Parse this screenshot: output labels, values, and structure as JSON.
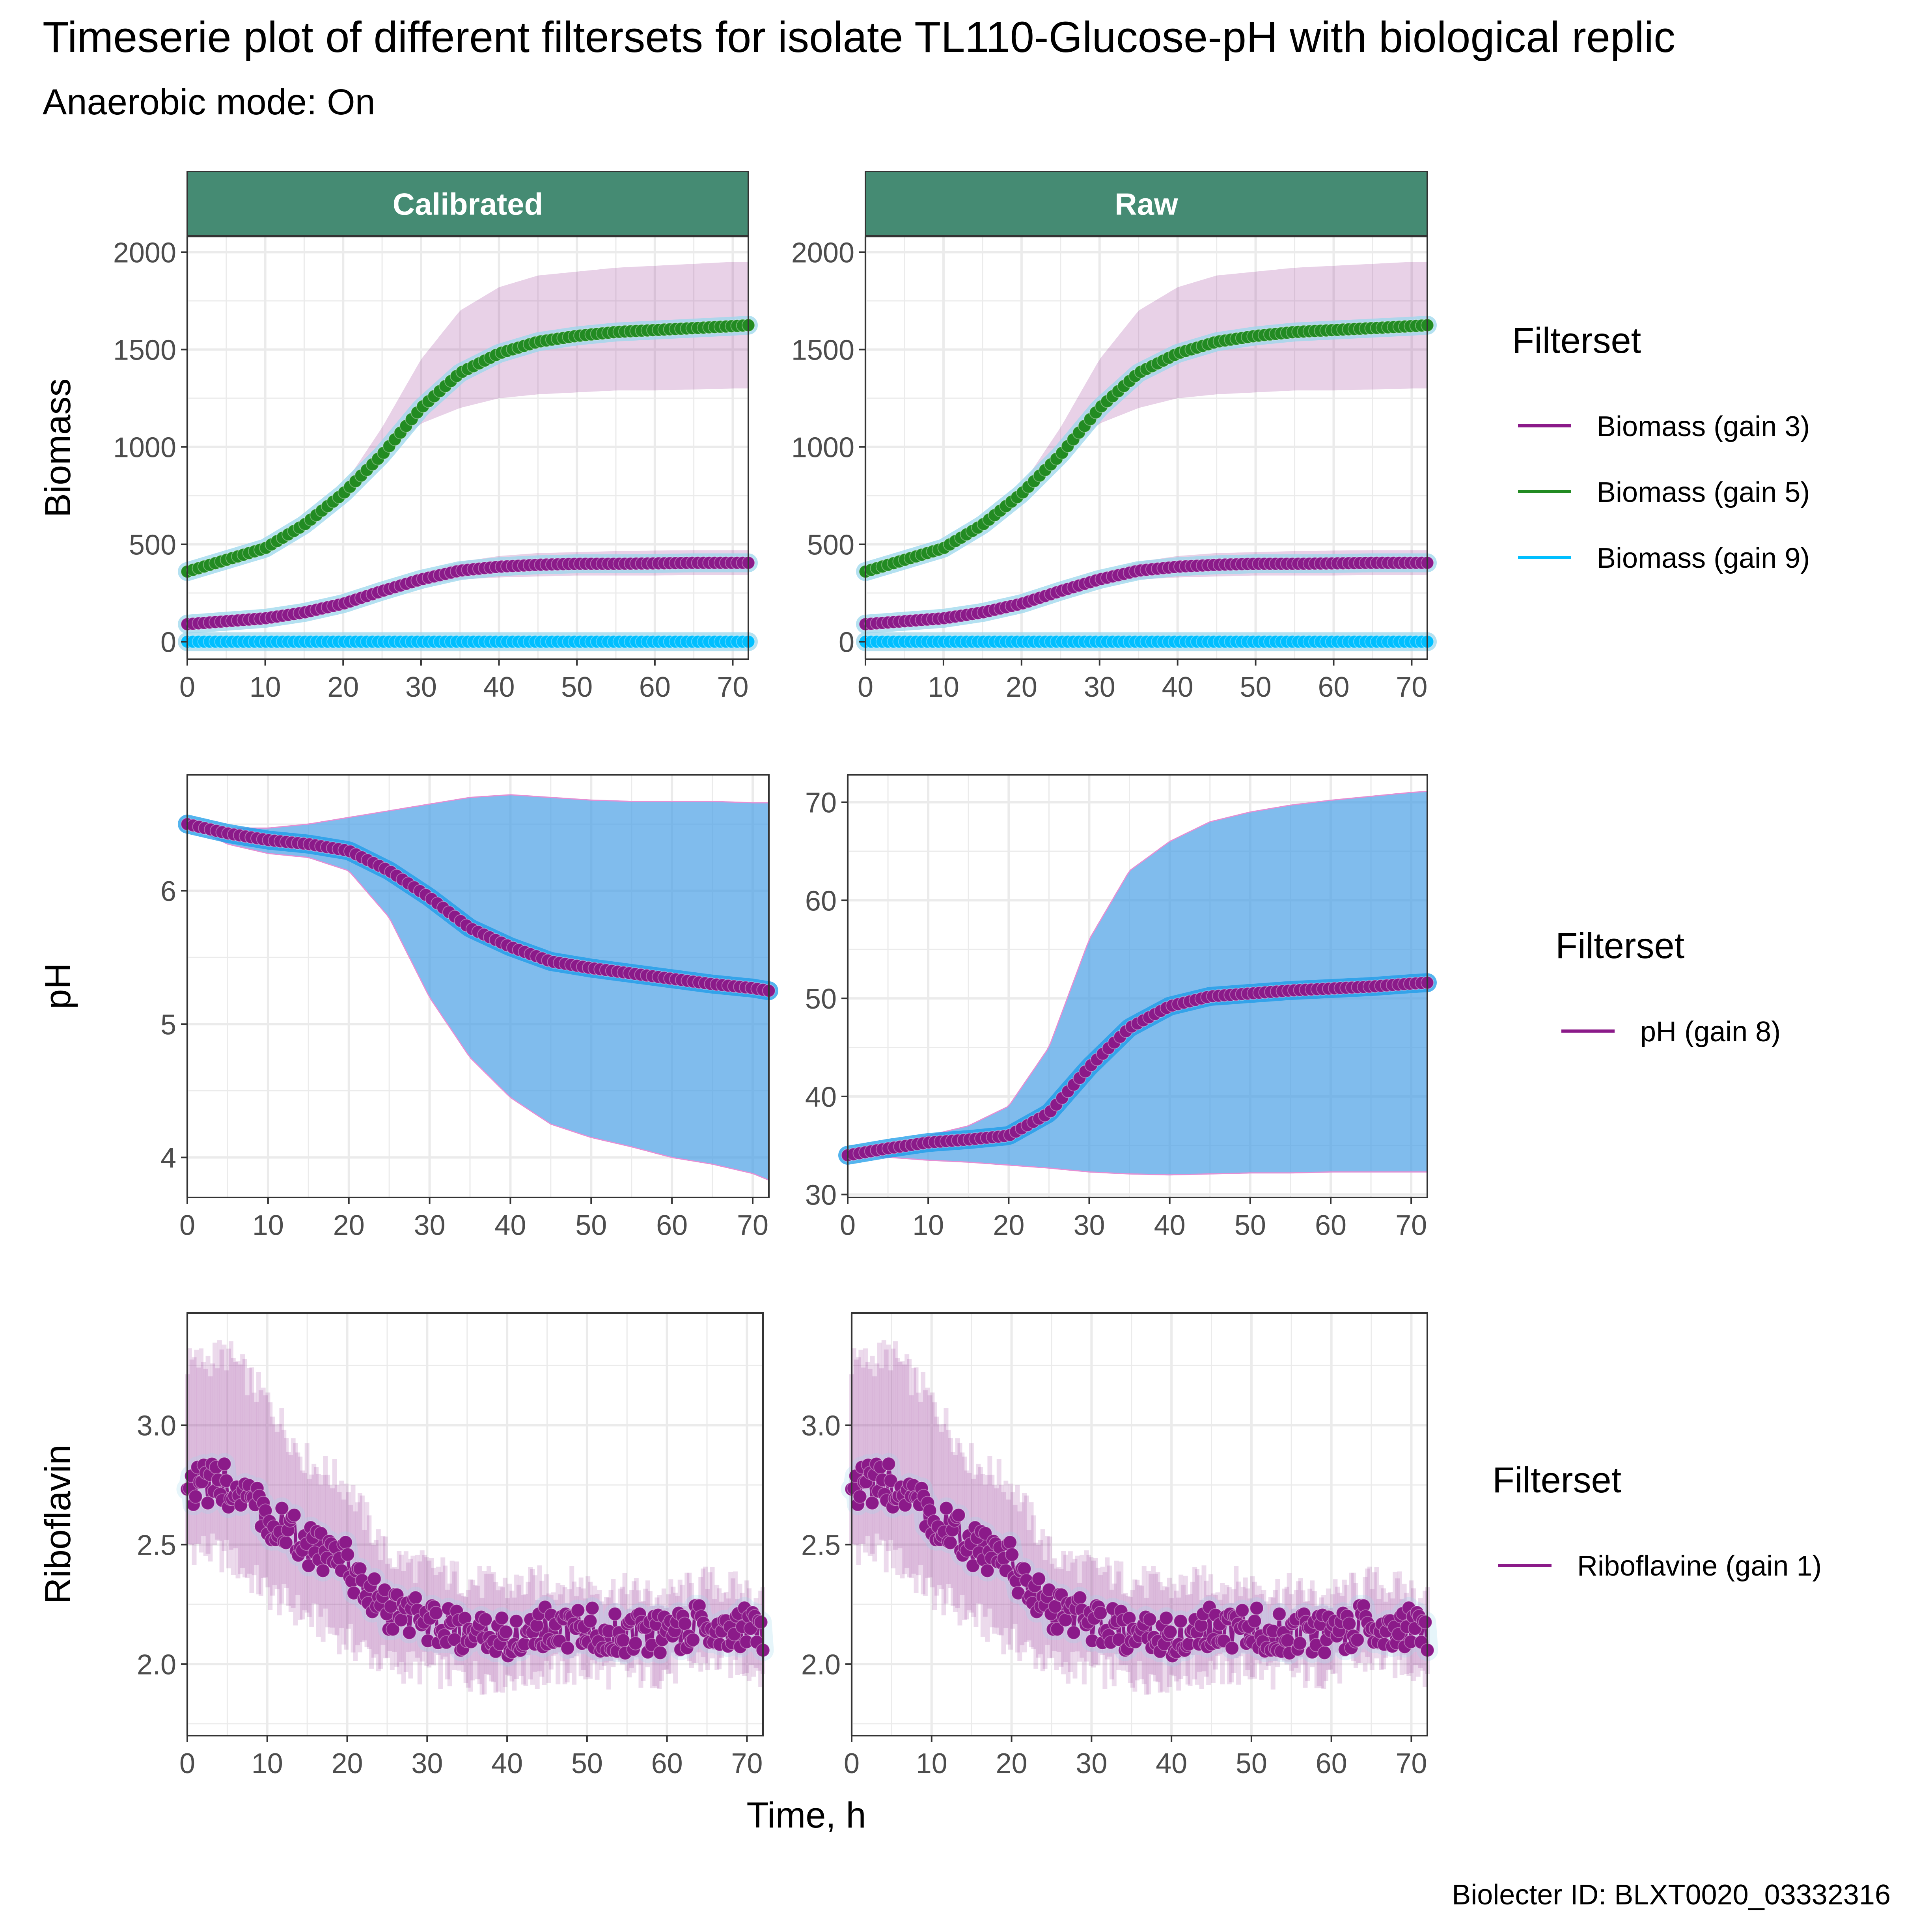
{
  "title": "Timeserie plot of different filtersets for isolate TL110-Glucose-pH with biological replic",
  "subtitle": "Anaerobic mode: On",
  "caption": "Biolecter ID: BLXT0020_03332316",
  "colors": {
    "panel_strip": "#458B73",
    "strip_text": "#ffffff",
    "grid": "#EBEBEB",
    "purple": "#8B1A89",
    "green": "#228B22",
    "cyan": "#00BFFF",
    "halo": "#9BD7EC",
    "ph_ribbon": "#4A9FE6",
    "ph_halo": "#1A9BE8"
  },
  "chart_data": {
    "type": "line",
    "x_axis": {
      "label": "Time, h",
      "range": [
        0,
        72
      ],
      "ticks": [
        0,
        10,
        20,
        30,
        40,
        50,
        60,
        70
      ],
      "tick_labels": [
        "0",
        "10",
        "20",
        "30",
        "40",
        "50",
        "60",
        "70"
      ]
    },
    "columns": [
      "Calibrated",
      "Raw"
    ],
    "rows": [
      {
        "ylabel": "Biomass",
        "legend_title": "Filterset",
        "legend_items": [
          {
            "label": "Biomass (gain 3)",
            "color": "#8B1A89"
          },
          {
            "label": "Biomass (gain 5)",
            "color": "#228B22"
          },
          {
            "label": "Biomass (gain 9)",
            "color": "#00BFFF"
          }
        ],
        "panels": [
          {
            "column": "Calibrated",
            "ylim": [
              -90,
              2080
            ],
            "ticks": [
              0,
              500,
              1000,
              1500,
              2000
            ],
            "tick_labels": [
              "0",
              "500",
              "1000",
              "1500",
              "2000"
            ],
            "series": [
              {
                "name": "Biomass (gain 5)",
                "color": "#228B22",
                "x": [
                  0,
                  5,
                  10,
                  15,
                  20,
                  25,
                  30,
                  35,
                  40,
                  45,
                  50,
                  55,
                  60,
                  65,
                  70,
                  72
                ],
                "y": [
                  360,
                  420,
                  480,
                  600,
                  760,
                  960,
                  1200,
                  1380,
                  1480,
                  1540,
                  1570,
                  1590,
                  1600,
                  1610,
                  1620,
                  1625
                ],
                "band_lower": [
                  360,
                  420,
                  480,
                  600,
                  760,
                  950,
                  1120,
                  1200,
                  1250,
                  1270,
                  1280,
                  1290,
                  1290,
                  1295,
                  1300,
                  1300
                ],
                "band_upper": [
                  360,
                  420,
                  480,
                  620,
                  800,
                  1100,
                  1450,
                  1700,
                  1820,
                  1880,
                  1900,
                  1920,
                  1930,
                  1940,
                  1950,
                  1950
                ],
                "band_color": "#8B1A89"
              },
              {
                "name": "Biomass (gain 3)",
                "color": "#8B1A89",
                "x": [
                  0,
                  5,
                  10,
                  15,
                  20,
                  25,
                  30,
                  35,
                  40,
                  45,
                  50,
                  55,
                  60,
                  65,
                  70,
                  72
                ],
                "y": [
                  90,
                  105,
                  120,
                  150,
                  195,
                  260,
                  320,
                  365,
                  385,
                  395,
                  400,
                  400,
                  402,
                  405,
                  405,
                  405
                ],
                "band_lower": [
                  90,
                  105,
                  120,
                  150,
                  190,
                  245,
                  290,
                  320,
                  330,
                  335,
                  340,
                  340,
                  340,
                  342,
                  342,
                  342
                ],
                "band_upper": [
                  90,
                  105,
                  120,
                  150,
                  200,
                  280,
                  350,
                  410,
                  440,
                  455,
                  460,
                  465,
                  468,
                  470,
                  470,
                  470
                ],
                "band_color": "#8B1A89"
              },
              {
                "name": "Biomass (gain 9)",
                "color": "#00BFFF",
                "x": [
                  0,
                  72
                ],
                "y": [
                  0,
                  0
                ]
              }
            ]
          },
          {
            "column": "Raw",
            "ylim": [
              -90,
              2080
            ],
            "ticks": [
              0,
              500,
              1000,
              1500,
              2000
            ],
            "tick_labels": [
              "0",
              "500",
              "1000",
              "1500",
              "2000"
            ],
            "series": [
              {
                "name": "Biomass (gain 5)",
                "color": "#228B22",
                "x": [
                  0,
                  5,
                  10,
                  15,
                  20,
                  25,
                  30,
                  35,
                  40,
                  45,
                  50,
                  55,
                  60,
                  65,
                  70,
                  72
                ],
                "y": [
                  360,
                  420,
                  480,
                  600,
                  760,
                  960,
                  1200,
                  1380,
                  1480,
                  1540,
                  1570,
                  1590,
                  1600,
                  1610,
                  1620,
                  1625
                ],
                "band_lower": [
                  360,
                  420,
                  480,
                  600,
                  760,
                  950,
                  1120,
                  1200,
                  1250,
                  1270,
                  1280,
                  1290,
                  1290,
                  1295,
                  1300,
                  1300
                ],
                "band_upper": [
                  360,
                  420,
                  480,
                  620,
                  800,
                  1100,
                  1450,
                  1700,
                  1820,
                  1880,
                  1900,
                  1920,
                  1930,
                  1940,
                  1950,
                  1950
                ],
                "band_color": "#8B1A89"
              },
              {
                "name": "Biomass (gain 3)",
                "color": "#8B1A89",
                "x": [
                  0,
                  5,
                  10,
                  15,
                  20,
                  25,
                  30,
                  35,
                  40,
                  45,
                  50,
                  55,
                  60,
                  65,
                  70,
                  72
                ],
                "y": [
                  90,
                  105,
                  120,
                  150,
                  195,
                  260,
                  320,
                  365,
                  385,
                  395,
                  400,
                  400,
                  402,
                  405,
                  405,
                  405
                ],
                "band_lower": [
                  90,
                  105,
                  120,
                  150,
                  190,
                  245,
                  290,
                  320,
                  330,
                  335,
                  340,
                  340,
                  340,
                  342,
                  342,
                  342
                ],
                "band_upper": [
                  90,
                  105,
                  120,
                  150,
                  200,
                  280,
                  350,
                  410,
                  440,
                  455,
                  460,
                  465,
                  468,
                  470,
                  470,
                  470
                ],
                "band_color": "#8B1A89"
              },
              {
                "name": "Biomass (gain 9)",
                "color": "#00BFFF",
                "x": [
                  0,
                  72
                ],
                "y": [
                  0,
                  0
                ]
              }
            ]
          }
        ]
      },
      {
        "ylabel": "pH",
        "legend_title": "Filterset",
        "legend_items": [
          {
            "label": "pH (gain 8)",
            "color": "#8B1A89"
          }
        ],
        "panels": [
          {
            "column": "Calibrated",
            "ylim": [
              3.7,
              6.87
            ],
            "ticks": [
              4,
              5,
              6
            ],
            "tick_labels": [
              "4",
              "5",
              "6"
            ],
            "series": [
              {
                "name": "pH (gain 8)",
                "color": "#8B1A89",
                "x": [
                  0,
                  5,
                  10,
                  15,
                  20,
                  25,
                  30,
                  35,
                  40,
                  45,
                  50,
                  55,
                  60,
                  65,
                  70,
                  72
                ],
                "y": [
                  6.5,
                  6.43,
                  6.38,
                  6.35,
                  6.3,
                  6.15,
                  5.95,
                  5.72,
                  5.58,
                  5.47,
                  5.42,
                  5.38,
                  5.34,
                  5.3,
                  5.27,
                  5.25
                ],
                "band_lower": [
                  6.5,
                  6.35,
                  6.28,
                  6.25,
                  6.15,
                  5.8,
                  5.2,
                  4.75,
                  4.45,
                  4.25,
                  4.15,
                  4.08,
                  4.0,
                  3.95,
                  3.88,
                  3.83
                ],
                "band_upper": [
                  6.5,
                  6.47,
                  6.47,
                  6.5,
                  6.55,
                  6.6,
                  6.65,
                  6.7,
                  6.72,
                  6.7,
                  6.68,
                  6.67,
                  6.67,
                  6.67,
                  6.66,
                  6.66
                ],
                "band_color": "#4A9FE6"
              }
            ]
          },
          {
            "column": "Raw",
            "ylim": [
              29.7,
              72.8
            ],
            "ticks": [
              30,
              40,
              50,
              60,
              70
            ],
            "tick_labels": [
              "30",
              "40",
              "50",
              "60",
              "70"
            ],
            "series": [
              {
                "name": "pH (gain 8)",
                "color": "#8B1A89",
                "x": [
                  0,
                  5,
                  10,
                  15,
                  20,
                  25,
                  30,
                  35,
                  40,
                  45,
                  50,
                  55,
                  60,
                  65,
                  70,
                  72
                ],
                "y": [
                  34,
                  34.7,
                  35.3,
                  35.6,
                  36,
                  38.3,
                  43,
                  47,
                  49.2,
                  50.2,
                  50.5,
                  50.8,
                  51,
                  51.2,
                  51.5,
                  51.6
                ],
                "band_lower": [
                  34,
                  33.8,
                  33.5,
                  33.3,
                  33,
                  32.7,
                  32.3,
                  32.1,
                  32,
                  32.1,
                  32.2,
                  32.2,
                  32.3,
                  32.3,
                  32.3,
                  32.3
                ],
                "band_upper": [
                  34,
                  35,
                  36,
                  37,
                  39,
                  45,
                  56,
                  63,
                  66,
                  68,
                  69,
                  69.7,
                  70.2,
                  70.6,
                  71,
                  71.1
                ],
                "band_color": "#4A9FE6"
              }
            ]
          }
        ]
      },
      {
        "ylabel": "Riboflavin",
        "legend_title": "Filterset",
        "legend_items": [
          {
            "label": "Riboflavine (gain 1)",
            "color": "#8B1A89"
          }
        ],
        "panels": [
          {
            "column": "Calibrated",
            "ylim": [
              1.7,
              3.47
            ],
            "ticks": [
              2.0,
              2.5,
              3.0
            ],
            "tick_labels": [
              "2.0",
              "2.5",
              "3.0"
            ],
            "series": [
              {
                "name": "Riboflavine (gain 1)",
                "color": "#8B1A89",
                "x": [
                  0,
                  5,
                  10,
                  15,
                  20,
                  25,
                  30,
                  35,
                  40,
                  45,
                  50,
                  55,
                  60,
                  65,
                  70,
                  72
                ],
                "y": [
                  2.75,
                  2.75,
                  2.62,
                  2.5,
                  2.42,
                  2.22,
                  2.18,
                  2.12,
                  2.12,
                  2.15,
                  2.15,
                  2.13,
                  2.12,
                  2.18,
                  2.15,
                  2.12
                ],
                "band_lower": [
                  2.5,
                  2.45,
                  2.3,
                  2.2,
                  2.1,
                  2.0,
                  1.98,
                  1.95,
                  1.95,
                  1.97,
                  1.98,
                  1.96,
                  1.97,
                  2.02,
                  2.0,
                  1.98
                ],
                "band_upper": [
                  3.25,
                  3.3,
                  3.1,
                  2.85,
                  2.75,
                  2.45,
                  2.4,
                  2.35,
                  2.32,
                  2.34,
                  2.33,
                  2.3,
                  2.28,
                  2.34,
                  2.3,
                  2.27
                ],
                "band_color": "#8B1A89",
                "noisy": true
              }
            ]
          },
          {
            "column": "Raw",
            "ylim": [
              1.7,
              3.47
            ],
            "ticks": [
              2.0,
              2.5,
              3.0
            ],
            "tick_labels": [
              "2.0",
              "2.5",
              "3.0"
            ],
            "series": [
              {
                "name": "Riboflavine (gain 1)",
                "color": "#8B1A89",
                "x": [
                  0,
                  5,
                  10,
                  15,
                  20,
                  25,
                  30,
                  35,
                  40,
                  45,
                  50,
                  55,
                  60,
                  65,
                  70,
                  72
                ],
                "y": [
                  2.75,
                  2.75,
                  2.62,
                  2.5,
                  2.42,
                  2.22,
                  2.18,
                  2.12,
                  2.12,
                  2.15,
                  2.15,
                  2.13,
                  2.12,
                  2.18,
                  2.15,
                  2.12
                ],
                "band_lower": [
                  2.5,
                  2.45,
                  2.3,
                  2.2,
                  2.1,
                  2.0,
                  1.98,
                  1.95,
                  1.95,
                  1.97,
                  1.98,
                  1.96,
                  1.97,
                  2.02,
                  2.0,
                  1.98
                ],
                "band_upper": [
                  3.25,
                  3.3,
                  3.1,
                  2.85,
                  2.75,
                  2.45,
                  2.4,
                  2.35,
                  2.32,
                  2.34,
                  2.33,
                  2.3,
                  2.28,
                  2.34,
                  2.3,
                  2.27
                ],
                "band_color": "#8B1A89",
                "noisy": true
              }
            ]
          }
        ]
      }
    ]
  }
}
